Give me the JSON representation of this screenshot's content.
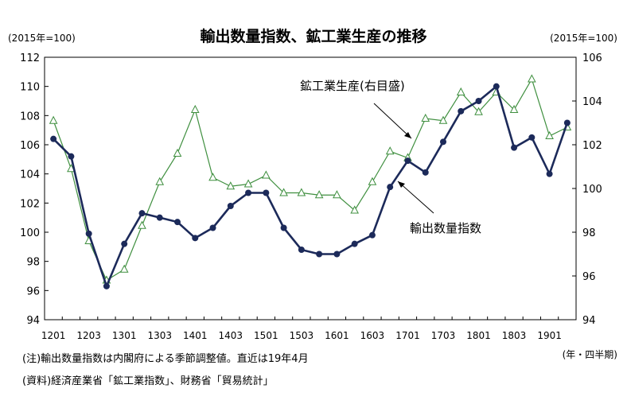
{
  "chart_data": {
    "type": "line",
    "title": "輸出数量指数、鉱工業生産の推移",
    "ylabel_left": "(2015年=100)",
    "ylabel_right": "(2015年=100)",
    "xlabel": "(年・四半期)",
    "ylim_left": [
      94,
      112
    ],
    "yticks_left": [
      94,
      96,
      98,
      100,
      102,
      104,
      106,
      108,
      110,
      112
    ],
    "ylim_right": [
      94,
      106
    ],
    "yticks_right": [
      94,
      96,
      98,
      100,
      102,
      104,
      106
    ],
    "x": [
      "1201",
      "1202",
      "1203",
      "1204",
      "1301",
      "1302",
      "1303",
      "1304",
      "1401",
      "1402",
      "1403",
      "1404",
      "1501",
      "1502",
      "1503",
      "1504",
      "1601",
      "1602",
      "1603",
      "1604",
      "1701",
      "1702",
      "1703",
      "1704",
      "1801",
      "1802",
      "1803",
      "1804",
      "1901",
      "1902"
    ],
    "xtick_labels": [
      "1201",
      "1203",
      "1301",
      "1303",
      "1401",
      "1403",
      "1501",
      "1503",
      "1601",
      "1603",
      "1701",
      "1703",
      "1801",
      "1803",
      "1901"
    ],
    "grid": false,
    "series": [
      {
        "name": "輸出数量指数",
        "axis": "left",
        "color": "#1c2a5a",
        "marker": "filled-circle",
        "values": [
          106.4,
          105.2,
          99.9,
          96.3,
          99.2,
          101.3,
          101.0,
          100.7,
          99.6,
          100.3,
          101.8,
          102.7,
          102.7,
          100.3,
          98.8,
          98.5,
          98.5,
          99.2,
          99.8,
          103.1,
          104.9,
          104.1,
          106.2,
          108.3,
          109.0,
          110.0,
          105.8,
          106.5,
          104.0,
          107.5
        ]
      },
      {
        "name": "鉱工業生産(右目盛)",
        "axis": "right",
        "color": "#3f8f3f",
        "marker": "open-triangle",
        "values": [
          103.1,
          100.9,
          97.6,
          95.8,
          96.3,
          98.3,
          100.3,
          101.6,
          103.6,
          100.5,
          100.1,
          100.2,
          100.6,
          99.8,
          99.8,
          99.7,
          99.7,
          99.0,
          100.3,
          101.7,
          101.4,
          103.2,
          103.1,
          104.4,
          103.5,
          104.4,
          103.6,
          105.0,
          102.4,
          102.8
        ]
      }
    ],
    "annotations": {
      "production_label": "鉱工業生産(右目盛)",
      "export_label": "輸出数量指数"
    }
  },
  "notes": {
    "note1": "(注)輸出数量指数は内閣府による季節調整値。直近は19年4月",
    "note2": "(資料)経済産業省「鉱工業指数」、財務省「貿易統計」"
  }
}
